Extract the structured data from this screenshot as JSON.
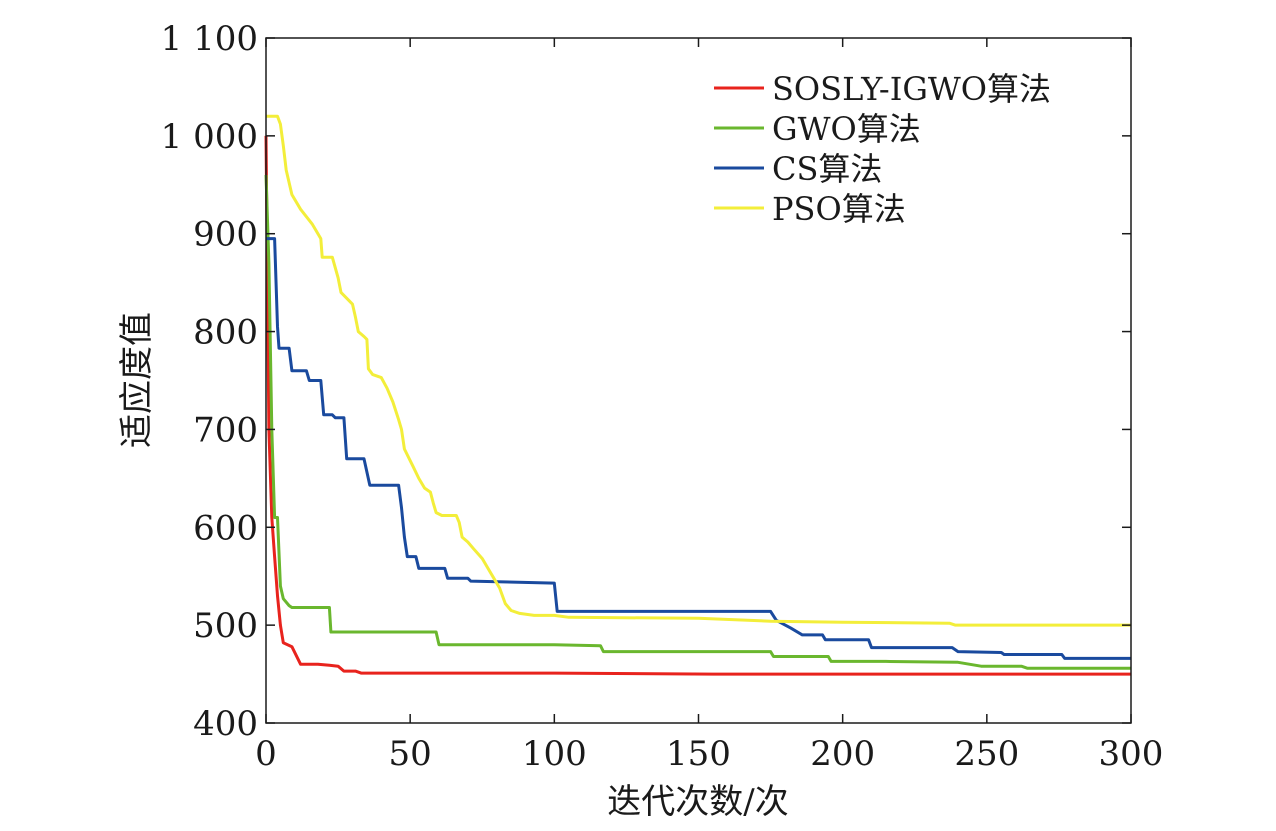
{
  "chart_data": {
    "type": "line",
    "title": "",
    "xlabel": "迭代次数/次",
    "ylabel": "适应度值",
    "xlim": [
      0,
      300
    ],
    "ylim": [
      400,
      1100
    ],
    "xticks": [
      0,
      50,
      100,
      150,
      200,
      250,
      300
    ],
    "xtick_labels": [
      "0",
      "50",
      "100",
      "150",
      "200",
      "250",
      "300"
    ],
    "yticks": [
      400,
      500,
      600,
      700,
      800,
      900,
      1000,
      1100
    ],
    "ytick_labels": [
      "400",
      "500",
      "600",
      "700",
      "800",
      "900",
      "1 000",
      "1 100"
    ],
    "grid": false,
    "legend_position": "top-right",
    "series": [
      {
        "name": "SOSLY-IGWO算法",
        "color": "#e8231d",
        "points": [
          [
            0,
            1000
          ],
          [
            1,
            700
          ],
          [
            2,
            610
          ],
          [
            3,
            570
          ],
          [
            4,
            530
          ],
          [
            5,
            500
          ],
          [
            6,
            482
          ],
          [
            9,
            478
          ],
          [
            12,
            460
          ],
          [
            18,
            460
          ],
          [
            22,
            459
          ],
          [
            25,
            458
          ],
          [
            27,
            453
          ],
          [
            31,
            453
          ],
          [
            33,
            451
          ],
          [
            100,
            451
          ],
          [
            155,
            450
          ],
          [
            300,
            450
          ]
        ]
      },
      {
        "name": "GWO算法",
        "color": "#6ab72e",
        "points": [
          [
            0,
            960
          ],
          [
            1,
            870
          ],
          [
            2,
            700
          ],
          [
            3,
            610
          ],
          [
            4,
            610
          ],
          [
            5,
            540
          ],
          [
            6,
            527
          ],
          [
            8,
            520
          ],
          [
            9,
            518
          ],
          [
            20,
            518
          ],
          [
            22,
            518
          ],
          [
            22.5,
            493
          ],
          [
            40,
            493
          ],
          [
            59,
            493
          ],
          [
            60,
            480
          ],
          [
            80,
            480
          ],
          [
            100,
            480
          ],
          [
            116,
            479
          ],
          [
            117,
            473
          ],
          [
            150,
            473
          ],
          [
            175,
            473
          ],
          [
            176,
            468
          ],
          [
            195,
            468
          ],
          [
            196,
            463
          ],
          [
            215,
            463
          ],
          [
            240,
            462
          ],
          [
            248,
            458
          ],
          [
            262,
            458
          ],
          [
            264,
            456
          ],
          [
            300,
            456
          ]
        ]
      },
      {
        "name": "CS算法",
        "color": "#1a4a9e",
        "points": [
          [
            0,
            895
          ],
          [
            3,
            895
          ],
          [
            4,
            805
          ],
          [
            4.5,
            783
          ],
          [
            8,
            783
          ],
          [
            9,
            760
          ],
          [
            14,
            760
          ],
          [
            15,
            750
          ],
          [
            19,
            750
          ],
          [
            20,
            715
          ],
          [
            23,
            715
          ],
          [
            24,
            712
          ],
          [
            27,
            712
          ],
          [
            28,
            670
          ],
          [
            34,
            670
          ],
          [
            36,
            643
          ],
          [
            46,
            643
          ],
          [
            47,
            620
          ],
          [
            48,
            590
          ],
          [
            49,
            570
          ],
          [
            52,
            570
          ],
          [
            53,
            558
          ],
          [
            62,
            558
          ],
          [
            63,
            548
          ],
          [
            70,
            548
          ],
          [
            71,
            545
          ],
          [
            100,
            543
          ],
          [
            101,
            514
          ],
          [
            150,
            514
          ],
          [
            175,
            514
          ],
          [
            177,
            505
          ],
          [
            182,
            497
          ],
          [
            186,
            490
          ],
          [
            193,
            490
          ],
          [
            194,
            485
          ],
          [
            209,
            485
          ],
          [
            210,
            477
          ],
          [
            238,
            477
          ],
          [
            240,
            473
          ],
          [
            255,
            472
          ],
          [
            256,
            470
          ],
          [
            276,
            470
          ],
          [
            277,
            466
          ],
          [
            300,
            466
          ]
        ]
      },
      {
        "name": "PSO算法",
        "color": "#f3ee3a",
        "points": [
          [
            0,
            1020
          ],
          [
            4,
            1020
          ],
          [
            5,
            1012
          ],
          [
            6,
            990
          ],
          [
            7,
            965
          ],
          [
            9,
            940
          ],
          [
            12,
            925
          ],
          [
            16,
            910
          ],
          [
            19,
            895
          ],
          [
            19.5,
            876
          ],
          [
            23,
            876
          ],
          [
            25,
            855
          ],
          [
            26,
            840
          ],
          [
            30,
            828
          ],
          [
            31,
            815
          ],
          [
            32,
            800
          ],
          [
            34,
            795
          ],
          [
            35,
            792
          ],
          [
            35.5,
            762
          ],
          [
            37,
            756
          ],
          [
            40,
            753
          ],
          [
            42,
            742
          ],
          [
            44,
            728
          ],
          [
            46,
            710
          ],
          [
            47,
            700
          ],
          [
            48,
            680
          ],
          [
            51,
            662
          ],
          [
            53,
            650
          ],
          [
            55,
            640
          ],
          [
            57,
            636
          ],
          [
            58,
            625
          ],
          [
            59,
            615
          ],
          [
            61,
            612
          ],
          [
            66,
            612
          ],
          [
            67,
            605
          ],
          [
            68,
            590
          ],
          [
            70,
            585
          ],
          [
            72,
            578
          ],
          [
            75,
            568
          ],
          [
            77,
            558
          ],
          [
            79,
            548
          ],
          [
            81,
            538
          ],
          [
            83,
            522
          ],
          [
            85,
            515
          ],
          [
            88,
            512
          ],
          [
            93,
            510
          ],
          [
            100,
            510
          ],
          [
            105,
            508
          ],
          [
            150,
            507
          ],
          [
            175,
            504
          ],
          [
            200,
            503
          ],
          [
            237,
            502
          ],
          [
            239,
            500
          ],
          [
            300,
            500
          ]
        ]
      }
    ]
  }
}
